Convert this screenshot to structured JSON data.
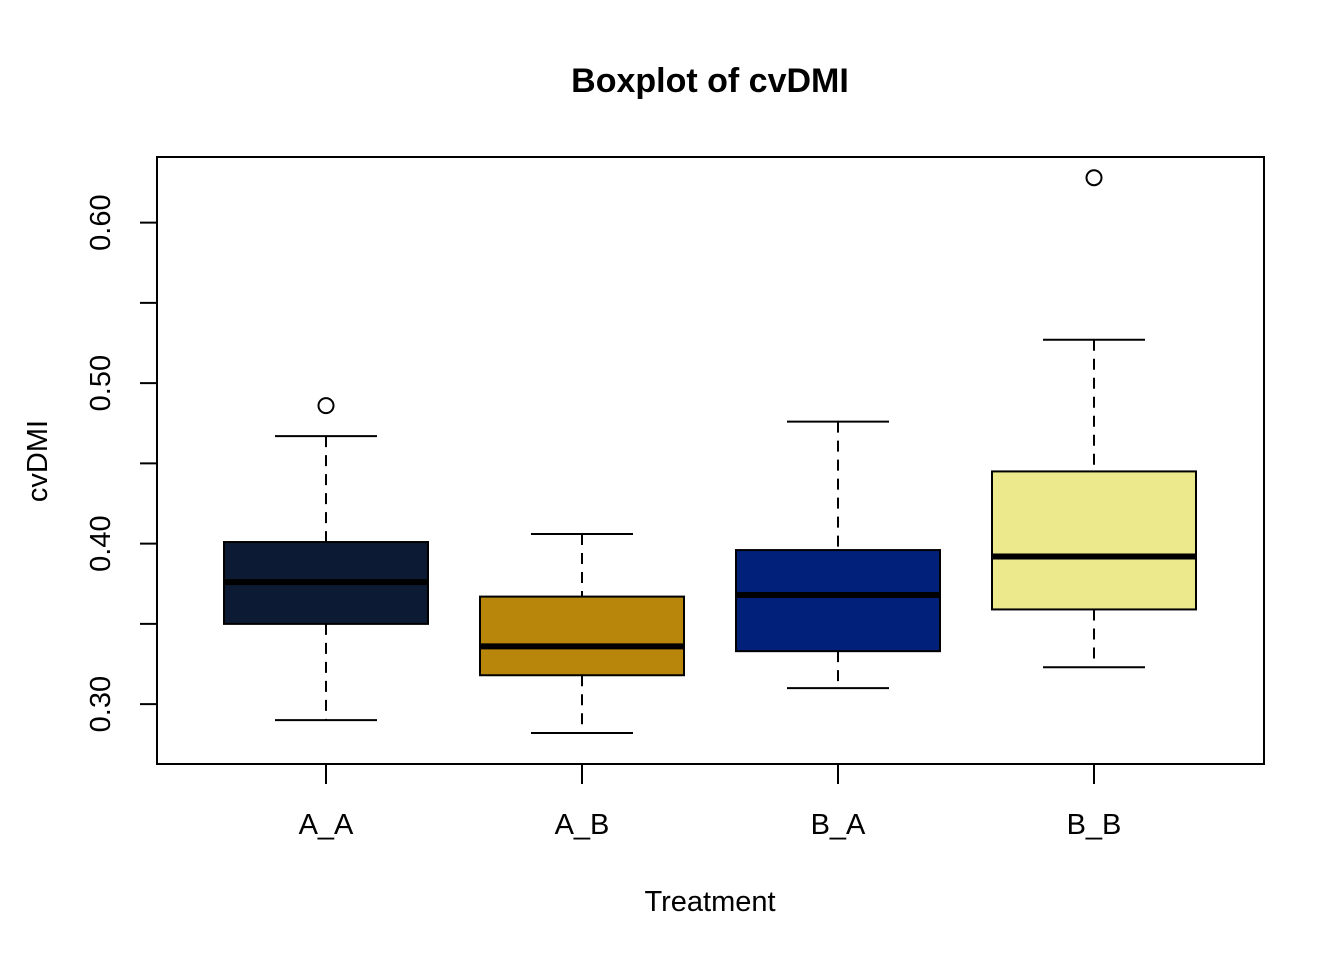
{
  "chart_data": {
    "type": "boxplot",
    "title": "Boxplot of cvDMI",
    "xlabel": "Treatment",
    "ylabel": "cvDMI",
    "categories": [
      "A_A",
      "A_B",
      "B_A",
      "B_B"
    ],
    "colors": [
      "#0c1b33",
      "#b8860b",
      "#00207a",
      "#ece98c"
    ],
    "yticks": [
      0.3,
      0.35,
      0.4,
      0.45,
      0.5,
      0.55,
      0.6
    ],
    "ytick_labels": [
      "0.30",
      "",
      "0.40",
      "",
      "0.50",
      "",
      "0.60"
    ],
    "ylim": [
      0.2627,
      0.6409
    ],
    "boxes": [
      {
        "category": "A_A",
        "whisker_low": 0.29,
        "q1": 0.35,
        "median": 0.376,
        "q3": 0.401,
        "whisker_high": 0.467,
        "outliers": [
          0.486
        ]
      },
      {
        "category": "A_B",
        "whisker_low": 0.282,
        "q1": 0.318,
        "median": 0.336,
        "q3": 0.367,
        "whisker_high": 0.406,
        "outliers": []
      },
      {
        "category": "B_A",
        "whisker_low": 0.31,
        "q1": 0.333,
        "median": 0.368,
        "q3": 0.396,
        "whisker_high": 0.476,
        "outliers": []
      },
      {
        "category": "B_B",
        "whisker_low": 0.323,
        "q1": 0.359,
        "median": 0.392,
        "q3": 0.445,
        "whisker_high": 0.527,
        "outliers": [
          0.628
        ]
      }
    ],
    "grid": false,
    "legend": "none"
  }
}
